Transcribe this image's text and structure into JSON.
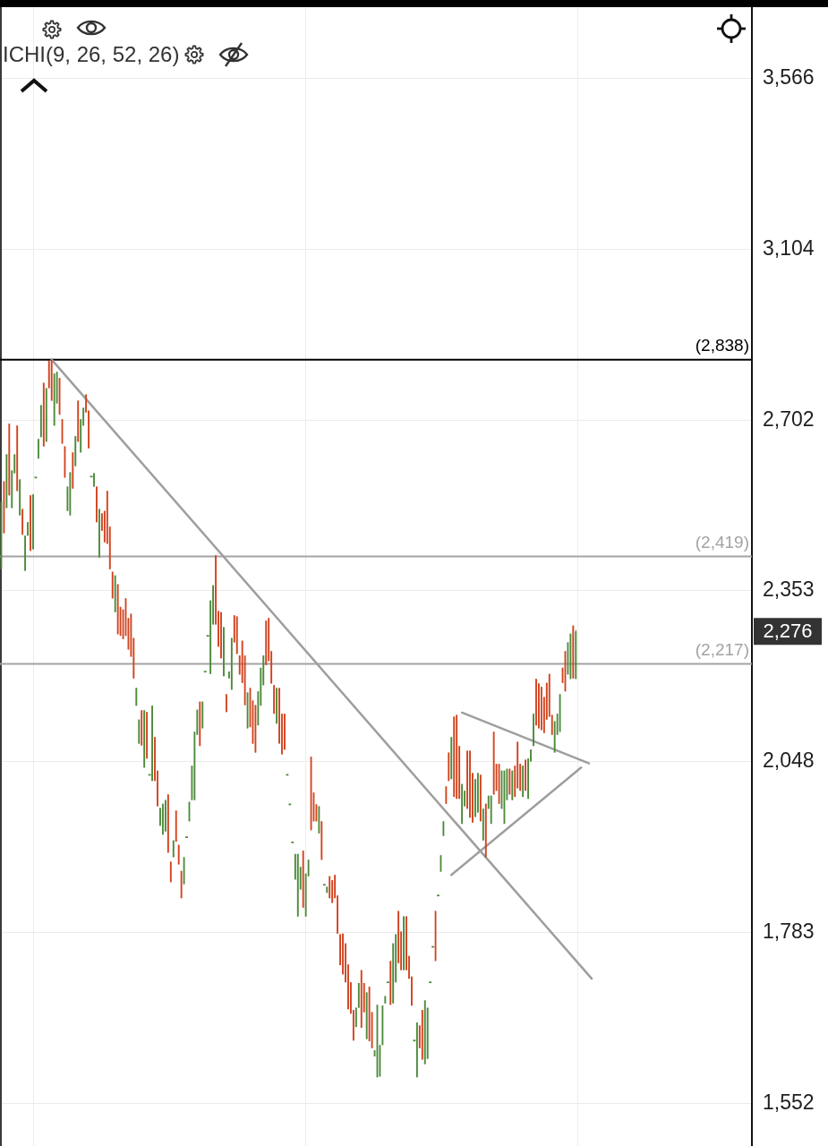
{
  "chart_data": {
    "type": "candlestick",
    "annotations": [
      "ICHI(9, 26, 52, 26)",
      "2,276"
    ],
    "categories": [
      null,
      null,
      null,
      null,
      null,
      null,
      null,
      null,
      null,
      null,
      null,
      null,
      null,
      null,
      null,
      null,
      null,
      null,
      null,
      null,
      null,
      null,
      null,
      null,
      null,
      null,
      null,
      null,
      null,
      null,
      null,
      null,
      null,
      null,
      null,
      null,
      null,
      null,
      null,
      null,
      null,
      null,
      null,
      null,
      null,
      null,
      null,
      null,
      null,
      null,
      null,
      null,
      null,
      null,
      null,
      null,
      null,
      null,
      null,
      null,
      null,
      null,
      null,
      null,
      null,
      null,
      null,
      null,
      null,
      null,
      null,
      null,
      null,
      null,
      null,
      null,
      null,
      null,
      null,
      null,
      null,
      null,
      null,
      null,
      null,
      null,
      null,
      null,
      null,
      null,
      null,
      null,
      null,
      null,
      null,
      null,
      null,
      null,
      null,
      null,
      null,
      null,
      null,
      null,
      null,
      null,
      null,
      null,
      null,
      null,
      null,
      null,
      null,
      null,
      null,
      null,
      null,
      null,
      null,
      null,
      null,
      null,
      null,
      null,
      null,
      null,
      null,
      null,
      null,
      null,
      null,
      null,
      null,
      null,
      null,
      null,
      null,
      null,
      null,
      null,
      null,
      null,
      null,
      null,
      null,
      null,
      null,
      null,
      null,
      null,
      null,
      null,
      null,
      null,
      null,
      null,
      null,
      null,
      null,
      null,
      null,
      null,
      null,
      null,
      null,
      null,
      null,
      null,
      null,
      null,
      null,
      null,
      null,
      null,
      null,
      null,
      null,
      null,
      null,
      null,
      null,
      null,
      null,
      null,
      null,
      null,
      null,
      null,
      null,
      null,
      null,
      null,
      null,
      null,
      null,
      null,
      null,
      null,
      null,
      null,
      null,
      null,
      null,
      null,
      null,
      null,
      null,
      null,
      null,
      null,
      null,
      null,
      null,
      null,
      null,
      null,
      null,
      null,
      null,
      null,
      null,
      null,
      null,
      null,
      null,
      null,
      null,
      null,
      null,
      null,
      null,
      null,
      null,
      null,
      null,
      null,
      null,
      null,
      null,
      null,
      null,
      null,
      null,
      null,
      null,
      null,
      null,
      null,
      null,
      null,
      null,
      null,
      null,
      null,
      null,
      null,
      null,
      null,
      null,
      null,
      null,
      null,
      null,
      null,
      null,
      null,
      null,
      null,
      null,
      null,
      null,
      null,
      null,
      null,
      null,
      null,
      null,
      null,
      null,
      null,
      null,
      null,
      null,
      null
    ],
    "ohlc": [
      [
        2394,
        2529,
        2394,
        2529
      ],
      [
        2571,
        2571,
        2465,
        2465
      ],
      [
        2516,
        2628,
        2516,
        2628
      ],
      [
        2694,
        2694,
        2542,
        2542
      ],
      [
        2516,
        2594,
        2516,
        2594
      ],
      [
        2588,
        2628,
        2588,
        2628
      ],
      [
        2690,
        2690,
        2551,
        2551
      ],
      [
        2501,
        2575,
        2501,
        2575
      ],
      [
        2514,
        2514,
        2462,
        2462
      ],
      [
        2391,
        2460,
        2391,
        2460
      ],
      [
        2460,
        2487,
        2460,
        2487
      ],
      [
        2542,
        2542,
        2430,
        2430
      ],
      [
        2433,
        2544,
        2433,
        2544
      ],
      [
        2579,
        2579,
        2579,
        2579
      ],
      [
        2619,
        2661,
        2619,
        2661
      ],
      [
        2665,
        2735,
        2665,
        2735
      ],
      [
        2785,
        2785,
        2645,
        2645
      ],
      [
        2655,
        2773,
        2655,
        2773
      ],
      [
        2835,
        2835,
        2773,
        2773
      ],
      [
        2838,
        2838,
        2745,
        2745
      ],
      [
        2690,
        2806,
        2690,
        2806
      ],
      [
        2739,
        2810,
        2739,
        2810
      ],
      [
        2796,
        2796,
        2714,
        2714
      ],
      [
        2704,
        2704,
        2651,
        2651
      ],
      [
        2645,
        2645,
        2579,
        2579
      ],
      [
        2510,
        2560,
        2510,
        2560
      ],
      [
        2501,
        2590,
        2501,
        2590
      ],
      [
        2632,
        2632,
        2556,
        2556
      ],
      [
        2603,
        2667,
        2603,
        2667
      ],
      [
        2745,
        2745,
        2655,
        2655
      ],
      [
        2632,
        2704,
        2632,
        2704
      ],
      [
        2690,
        2729,
        2690,
        2729
      ],
      [
        2759,
        2759,
        2719,
        2719
      ],
      [
        2723,
        2723,
        2641,
        2641
      ],
      [
        2581,
        2581,
        2581,
        2581
      ],
      [
        2560,
        2588,
        2560,
        2588
      ],
      [
        2560,
        2560,
        2487,
        2487
      ],
      [
        2417,
        2514,
        2417,
        2514
      ],
      [
        2505,
        2505,
        2470,
        2470
      ],
      [
        2510,
        2510,
        2447,
        2447
      ],
      [
        2551,
        2551,
        2444,
        2444
      ],
      [
        2478,
        2478,
        2394,
        2394
      ],
      [
        2389,
        2389,
        2338,
        2338
      ],
      [
        2312,
        2382,
        2312,
        2382
      ],
      [
        2365,
        2365,
        2271,
        2271
      ],
      [
        2322,
        2322,
        2268,
        2268
      ],
      [
        2317,
        2317,
        2262,
        2262
      ],
      [
        2338,
        2338,
        2268,
        2268
      ],
      [
        2301,
        2301,
        2243,
        2243
      ],
      [
        2309,
        2309,
        2230,
        2230
      ],
      [
        2264,
        2264,
        2191,
        2191
      ],
      [
        2143,
        2174,
        2143,
        2174
      ],
      [
        2078,
        2119,
        2078,
        2119
      ],
      [
        2135,
        2135,
        2075,
        2075
      ],
      [
        2038,
        2135,
        2038,
        2135
      ],
      [
        2132,
        2132,
        2053,
        2053
      ],
      [
        2026,
        2026,
        2026,
        2026
      ],
      [
        2016,
        2143,
        2016,
        2143
      ],
      [
        2089,
        2089,
        2016,
        2016
      ],
      [
        2033,
        2033,
        1975,
        1975
      ],
      [
        1944,
        1972,
        1944,
        1972
      ],
      [
        1930,
        1979,
        1930,
        1979
      ],
      [
        1935,
        1985,
        1935,
        1985
      ],
      [
        1994,
        1994,
        1902,
        1902
      ],
      [
        1888,
        1888,
        1857,
        1857
      ],
      [
        1895,
        1921,
        1895,
        1921
      ],
      [
        1968,
        1968,
        1919,
        1919
      ],
      [
        1914,
        1914,
        1884,
        1884
      ],
      [
        1874,
        1874,
        1833,
        1833
      ],
      [
        1854,
        1895,
        1854,
        1895
      ],
      [
        1926,
        1926,
        1926,
        1926
      ],
      [
        1951,
        1982,
        1951,
        1982
      ],
      [
        1985,
        2041,
        1985,
        2041
      ],
      [
        1985,
        2098,
        1985,
        2098
      ],
      [
        2093,
        2136,
        2093,
        2136
      ],
      [
        2150,
        2150,
        2074,
        2074
      ],
      [
        2104,
        2150,
        2104,
        2150
      ],
      [
        2203,
        2203,
        2203,
        2203
      ],
      [
        2268,
        2268,
        2268,
        2268
      ],
      [
        2199,
        2334,
        2199,
        2334
      ],
      [
        2289,
        2363,
        2289,
        2363
      ],
      [
        2421,
        2421,
        2289,
        2289
      ],
      [
        2314,
        2314,
        2248,
        2248
      ],
      [
        2312,
        2312,
        2227,
        2227
      ],
      [
        2195,
        2284,
        2195,
        2284
      ],
      [
        2163,
        2163,
        2132,
        2132
      ],
      [
        2191,
        2203,
        2191,
        2203
      ],
      [
        2171,
        2264,
        2171,
        2264
      ],
      [
        2306,
        2306,
        2256,
        2256
      ],
      [
        2304,
        2304,
        2235,
        2235
      ],
      [
        2232,
        2232,
        2198,
        2198
      ],
      [
        2259,
        2259,
        2183,
        2183
      ],
      [
        2232,
        2232,
        2144,
        2144
      ],
      [
        2104,
        2166,
        2104,
        2166
      ],
      [
        2174,
        2174,
        2106,
        2106
      ],
      [
        2152,
        2152,
        2078,
        2078
      ],
      [
        2144,
        2144,
        2063,
        2063
      ],
      [
        2109,
        2168,
        2109,
        2168
      ],
      [
        2143,
        2210,
        2143,
        2210
      ],
      [
        2179,
        2232,
        2179,
        2232
      ],
      [
        2296,
        2296,
        2215,
        2215
      ],
      [
        2301,
        2301,
        2222,
        2222
      ],
      [
        2240,
        2240,
        2182,
        2182
      ],
      [
        2179,
        2179,
        2129,
        2129
      ],
      [
        2112,
        2174,
        2112,
        2174
      ],
      [
        2174,
        2174,
        2078,
        2078
      ],
      [
        2129,
        2129,
        2060,
        2060
      ],
      [
        2129,
        2129,
        2068,
        2068
      ],
      [
        2026,
        2026,
        2026,
        2026
      ],
      [
        1978,
        1978,
        1978,
        1978
      ],
      [
        1918,
        1918,
        1918,
        1918
      ],
      [
        1861,
        1900,
        1861,
        1900
      ],
      [
        1806,
        1900,
        1806,
        1900
      ],
      [
        1846,
        1880,
        1846,
        1880
      ],
      [
        1905,
        1905,
        1819,
        1819
      ],
      [
        1806,
        1870,
        1806,
        1870
      ],
      [
        1866,
        1891,
        1866,
        1891
      ],
      [
        2056,
        2056,
        1937,
        1937
      ],
      [
        1997,
        1997,
        1951,
        1951
      ],
      [
        1978,
        1978,
        1951,
        1951
      ],
      [
        1932,
        1975,
        1932,
        1975
      ],
      [
        1951,
        1951,
        1891,
        1891
      ],
      [
        1853,
        1853,
        1853,
        1853
      ],
      [
        1841,
        1850,
        1841,
        1850
      ],
      [
        1866,
        1866,
        1833,
        1833
      ],
      [
        1860,
        1860,
        1826,
        1826
      ],
      [
        1868,
        1868,
        1833,
        1833
      ],
      [
        1837,
        1837,
        1781,
        1781
      ],
      [
        1780,
        1780,
        1736,
        1736
      ],
      [
        1781,
        1781,
        1723,
        1723
      ],
      [
        1767,
        1767,
        1712,
        1712
      ],
      [
        1737,
        1737,
        1675,
        1675
      ],
      [
        1712,
        1712,
        1669,
        1669
      ],
      [
        1674,
        1674,
        1633,
        1633
      ],
      [
        1651,
        1677,
        1651,
        1677
      ],
      [
        1677,
        1711,
        1677,
        1711
      ],
      [
        1729,
        1729,
        1650,
        1650
      ],
      [
        1711,
        1711,
        1671,
        1671
      ],
      [
        1635,
        1698,
        1635,
        1698
      ],
      [
        1706,
        1706,
        1632,
        1632
      ],
      [
        1671,
        1671,
        1623,
        1623
      ],
      [
        1612,
        1620,
        1612,
        1620
      ],
      [
        1585,
        1681,
        1585,
        1681
      ],
      [
        1586,
        1627,
        1586,
        1627
      ],
      [
        1627,
        1680,
        1627,
        1680
      ],
      [
        1683,
        1693,
        1683,
        1693
      ],
      [
        1712,
        1712,
        1712,
        1712
      ],
      [
        1742,
        1742,
        1681,
        1681
      ],
      [
        1683,
        1767,
        1683,
        1767
      ],
      [
        1712,
        1780,
        1712,
        1780
      ],
      [
        1814,
        1814,
        1739,
        1739
      ],
      [
        1784,
        1784,
        1729,
        1729
      ],
      [
        1729,
        1806,
        1729,
        1806
      ],
      [
        1806,
        1806,
        1729,
        1729
      ],
      [
        1749,
        1749,
        1717,
        1717
      ],
      [
        1720,
        1720,
        1680,
        1680
      ],
      [
        1633,
        1633,
        1633,
        1633
      ],
      [
        1585,
        1657,
        1585,
        1657
      ],
      [
        1653,
        1653,
        1623,
        1623
      ],
      [
        1674,
        1674,
        1608,
        1608
      ],
      [
        1602,
        1687,
        1602,
        1687
      ],
      [
        1609,
        1677,
        1609,
        1677
      ],
      [
        1712,
        1712,
        1712,
        1712
      ],
      [
        1762,
        1762,
        1762,
        1762
      ],
      [
        1814,
        1814,
        1742,
        1742
      ],
      [
        1837,
        1837,
        1837,
        1837
      ],
      [
        1873,
        1898,
        1873,
        1898
      ],
      [
        1928,
        1951,
        1928,
        1951
      ],
      [
        2007,
        2007,
        1979,
        1979
      ],
      [
        2063,
        2063,
        2016,
        2016
      ],
      [
        2019,
        2089,
        2019,
        2089
      ],
      [
        2124,
        2124,
        1990,
        1990
      ],
      [
        2127,
        2127,
        1987,
        1987
      ],
      [
        2074,
        2074,
        1987,
        1987
      ],
      [
        1947,
        2011,
        1947,
        2011
      ],
      [
        1975,
        2000,
        1975,
        2000
      ],
      [
        2066,
        2066,
        1971,
        1971
      ],
      [
        2066,
        2066,
        1957,
        1957
      ],
      [
        2029,
        2029,
        1949,
        1949
      ],
      [
        1958,
        2019,
        1958,
        2019
      ],
      [
        1965,
        2029,
        1965,
        2029
      ],
      [
        2026,
        2026,
        1951,
        1951
      ],
      [
        1921,
        1971,
        1921,
        1971
      ],
      [
        1979,
        1979,
        1895,
        1895
      ],
      [
        1971,
        1992,
        1971,
        1992
      ],
      [
        1947,
        1992,
        1947,
        1992
      ],
      [
        2098,
        2098,
        1994,
        1994
      ],
      [
        2044,
        2044,
        2000,
        2000
      ],
      [
        2044,
        2044,
        1979,
        1979
      ],
      [
        1971,
        2033,
        1971,
        2033
      ],
      [
        1947,
        2033,
        1947,
        2033
      ],
      [
        1985,
        2036,
        1985,
        2036
      ],
      [
        2036,
        2036,
        1994,
        1994
      ],
      [
        1985,
        2033,
        1985,
        2033
      ],
      [
        2041,
        2041,
        1990,
        1990
      ],
      [
        2081,
        2081,
        2004,
        2004
      ],
      [
        2044,
        2044,
        2000,
        2000
      ],
      [
        1990,
        2041,
        1990,
        2041
      ],
      [
        2051,
        2051,
        2000,
        2000
      ],
      [
        1987,
        2053,
        1987,
        2053
      ],
      [
        2048,
        2068,
        2048,
        2068
      ],
      [
        2074,
        2129,
        2074,
        2129
      ],
      [
        2190,
        2190,
        2109,
        2109
      ],
      [
        2182,
        2182,
        2104,
        2104
      ],
      [
        2176,
        2176,
        2101,
        2101
      ],
      [
        2158,
        2158,
        2096,
        2096
      ],
      [
        2183,
        2183,
        2119,
        2119
      ],
      [
        2199,
        2199,
        2124,
        2124
      ],
      [
        2127,
        2127,
        2093,
        2093
      ],
      [
        2063,
        2116,
        2063,
        2116
      ],
      [
        2093,
        2129,
        2093,
        2129
      ],
      [
        2098,
        2163,
        2098,
        2163
      ],
      [
        2210,
        2210,
        2183,
        2183
      ],
      [
        2240,
        2240,
        2168,
        2168
      ],
      [
        2198,
        2256,
        2198,
        2256
      ],
      [
        2190,
        2272,
        2190,
        2272
      ],
      [
        2287,
        2287,
        2191,
        2191
      ],
      [
        2190,
        2279,
        2190,
        2276
      ],
      null,
      null,
      null,
      null,
      null,
      null,
      null,
      null,
      null,
      null,
      null,
      null,
      null,
      null,
      null,
      null,
      null,
      null,
      null,
      null,
      null,
      null,
      null,
      null,
      null,
      null,
      null,
      null,
      null,
      null,
      null,
      null,
      null,
      null,
      null,
      null,
      null,
      null,
      null,
      null,
      null,
      null,
      null,
      null,
      null,
      null,
      null,
      null,
      null,
      null,
      null,
      null,
      null,
      null,
      null,
      null,
      null,
      null,
      null,
      null,
      null,
      null,
      null,
      null,
      null,
      null
    ],
    "colors": [
      "#4d8a3b",
      "#d2431f",
      "#4d8a3b",
      "#d2431f",
      "#4d8a3b",
      "#4d8a3b",
      "#d2431f",
      "#4d8a3b",
      "#d2431f",
      "#4d8a3b",
      "#4d8a3b",
      "#d2431f",
      "#4d8a3b",
      "#4d8a3b",
      "#4d8a3b",
      "#4d8a3b",
      "#d2431f",
      "#4d8a3b",
      "#d2431f",
      "#d2431f",
      "#4d8a3b",
      "#4d8a3b",
      "#d2431f",
      "#d2431f",
      "#d2431f",
      "#4d8a3b",
      "#4d8a3b",
      "#d2431f",
      "#4d8a3b",
      "#d2431f",
      "#4d8a3b",
      "#4d8a3b",
      "#d2431f",
      "#d2431f",
      "#4d8a3b",
      "#4d8a3b",
      "#d2431f",
      "#4d8a3b",
      "#d2431f",
      "#d2431f",
      "#d2431f",
      "#d2431f",
      "#d2431f",
      "#4d8a3b",
      "#d2431f",
      "#d2431f",
      "#d2431f",
      "#d2431f",
      "#d2431f",
      "#d2431f",
      "#d2431f",
      "#4d8a3b",
      "#4d8a3b",
      "#d2431f",
      "#4d8a3b",
      "#d2431f",
      "#4d8a3b",
      "#4d8a3b",
      "#d2431f",
      "#d2431f",
      "#4d8a3b",
      "#4d8a3b",
      "#4d8a3b",
      "#d2431f",
      "#d2431f",
      "#4d8a3b",
      "#d2431f",
      "#d2431f",
      "#d2431f",
      "#4d8a3b",
      "#4d8a3b",
      "#4d8a3b",
      "#4d8a3b",
      "#4d8a3b",
      "#4d8a3b",
      "#d2431f",
      "#4d8a3b",
      "#4d8a3b",
      "#4d8a3b",
      "#4d8a3b",
      "#4d8a3b",
      "#d2431f",
      "#d2431f",
      "#d2431f",
      "#4d8a3b",
      "#d2431f",
      "#4d8a3b",
      "#4d8a3b",
      "#d2431f",
      "#d2431f",
      "#d2431f",
      "#d2431f",
      "#d2431f",
      "#4d8a3b",
      "#d2431f",
      "#d2431f",
      "#d2431f",
      "#4d8a3b",
      "#4d8a3b",
      "#4d8a3b",
      "#d2431f",
      "#d2431f",
      "#d2431f",
      "#d2431f",
      "#4d8a3b",
      "#d2431f",
      "#d2431f",
      "#d2431f",
      "#4d8a3b",
      "#4d8a3b",
      "#4d8a3b",
      "#4d8a3b",
      "#4d8a3b",
      "#4d8a3b",
      "#d2431f",
      "#4d8a3b",
      "#4d8a3b",
      "#d2431f",
      "#d2431f",
      "#d2431f",
      "#4d8a3b",
      "#d2431f",
      "#4d8a3b",
      "#4d8a3b",
      "#d2431f",
      "#d2431f",
      "#d2431f",
      "#d2431f",
      "#d2431f",
      "#d2431f",
      "#d2431f",
      "#d2431f",
      "#d2431f",
      "#d2431f",
      "#4d8a3b",
      "#4d8a3b",
      "#d2431f",
      "#d2431f",
      "#4d8a3b",
      "#d2431f",
      "#d2431f",
      "#4d8a3b",
      "#4d8a3b",
      "#4d8a3b",
      "#4d8a3b",
      "#4d8a3b",
      "#4d8a3b",
      "#d2431f",
      "#4d8a3b",
      "#4d8a3b",
      "#d2431f",
      "#d2431f",
      "#4d8a3b",
      "#d2431f",
      "#d2431f",
      "#d2431f",
      "#4d8a3b",
      "#4d8a3b",
      "#d2431f",
      "#d2431f",
      "#4d8a3b",
      "#4d8a3b",
      "#4d8a3b",
      "#4d8a3b",
      "#d2431f",
      "#4d8a3b",
      "#4d8a3b",
      "#4d8a3b",
      "#d2431f",
      "#d2431f",
      "#4d8a3b",
      "#d2431f",
      "#d2431f",
      "#d2431f",
      "#4d8a3b",
      "#4d8a3b",
      "#d2431f",
      "#d2431f",
      "#d2431f",
      "#4d8a3b",
      "#4d8a3b",
      "#d2431f",
      "#4d8a3b",
      "#d2431f",
      "#4d8a3b",
      "#4d8a3b",
      "#d2431f",
      "#d2431f",
      "#d2431f",
      "#4d8a3b",
      "#4d8a3b",
      "#4d8a3b",
      "#d2431f",
      "#4d8a3b",
      "#d2431f",
      "#d2431f",
      "#d2431f",
      "#4d8a3b",
      "#d2431f",
      "#4d8a3b",
      "#4d8a3b",
      "#4d8a3b",
      "#d2431f",
      "#d2431f",
      "#d2431f",
      "#d2431f",
      "#d2431f",
      "#d2431f",
      "#d2431f",
      "#4d8a3b",
      "#4d8a3b",
      "#4d8a3b",
      "#d2431f",
      "#d2431f",
      "#4d8a3b",
      "#4d8a3b",
      "#d2431f",
      "#4d8a3b",
      null,
      null,
      null,
      null,
      null,
      null,
      null,
      null,
      null,
      null,
      null,
      null,
      null,
      null,
      null,
      null,
      null,
      null,
      null,
      null,
      null,
      null,
      null,
      null,
      null,
      null,
      null,
      null,
      null,
      null,
      null,
      null,
      null,
      null,
      null,
      null,
      null,
      null,
      null,
      null,
      null,
      null,
      null,
      null,
      null,
      null,
      null,
      null,
      null,
      null,
      null,
      null,
      null,
      null,
      null,
      null,
      null,
      null,
      null,
      null,
      null,
      null,
      null,
      null,
      null,
      null
    ],
    "series": [
      {
        "type": "line",
        "color": "#9e9e9e",
        "values": [
          null,
          null,
          null,
          null,
          null,
          null,
          null,
          null,
          null,
          null,
          null,
          null,
          null,
          null,
          null,
          null,
          null,
          null,
          null,
          2838,
          null,
          null,
          null,
          null,
          null,
          null,
          null,
          null,
          null,
          null,
          null,
          null,
          null,
          null,
          null,
          null,
          null,
          null,
          null,
          null,
          null,
          null,
          null,
          null,
          null,
          null,
          null,
          null,
          null,
          null,
          null,
          null,
          null,
          null,
          null,
          null,
          null,
          null,
          null,
          null,
          null,
          null,
          null,
          null,
          null,
          null,
          null,
          null,
          null,
          null,
          null,
          null,
          null,
          null,
          null,
          null,
          null,
          null,
          null,
          null,
          null,
          null,
          null,
          null,
          null,
          null,
          null,
          null,
          null,
          null,
          null,
          null,
          null,
          null,
          null,
          null,
          null,
          null,
          null,
          null,
          null,
          null,
          null,
          null,
          null,
          null,
          null,
          null,
          null,
          null,
          null,
          null,
          null,
          null,
          null,
          null,
          null,
          null,
          null,
          null,
          null,
          null,
          null,
          null,
          null,
          null,
          null,
          null,
          null,
          null,
          null,
          null,
          null,
          null,
          null,
          null,
          null,
          null,
          null,
          null,
          null,
          null,
          null,
          null,
          null,
          null,
          null,
          null,
          null,
          null,
          null,
          null,
          null,
          null,
          null,
          null,
          null,
          null,
          null,
          null,
          null,
          null,
          null,
          null,
          null,
          null,
          null,
          null,
          null,
          null,
          null,
          null,
          null,
          null,
          null,
          null,
          null,
          null,
          null,
          null,
          null,
          null,
          null,
          null,
          null,
          null,
          null,
          null,
          null,
          null,
          null,
          null,
          null,
          null,
          null,
          null,
          null,
          null,
          null,
          null,
          null,
          null,
          null,
          null,
          null,
          null,
          null,
          null,
          null,
          null,
          null,
          null,
          null,
          null,
          null,
          null,
          null,
          null,
          null,
          null,
          null,
          null,
          null,
          1717,
          null,
          null,
          null,
          null,
          null,
          null,
          null,
          null,
          null,
          null,
          null,
          null,
          null,
          null,
          null,
          null,
          null,
          null,
          null,
          null,
          null,
          null,
          null,
          null,
          null,
          null,
          null,
          null,
          null,
          null,
          null,
          null,
          null,
          null,
          null,
          null,
          null,
          null,
          null,
          null,
          null,
          null,
          null,
          null,
          null,
          null,
          null,
          null,
          null,
          null,
          null,
          null,
          null,
          null,
          null,
          null,
          null,
          null,
          null,
          null
        ]
      },
      {
        "type": "line",
        "color": "#9e9e9e",
        "values": [
          null,
          null,
          null,
          null,
          null,
          null,
          null,
          null,
          null,
          null,
          null,
          null,
          null,
          null,
          null,
          null,
          null,
          null,
          null,
          null,
          null,
          null,
          null,
          null,
          null,
          null,
          null,
          null,
          null,
          null,
          null,
          null,
          null,
          null,
          null,
          null,
          null,
          null,
          null,
          null,
          null,
          null,
          null,
          null,
          null,
          null,
          null,
          null,
          null,
          null,
          null,
          null,
          null,
          null,
          null,
          null,
          null,
          null,
          null,
          null,
          null,
          null,
          null,
          null,
          null,
          null,
          null,
          null,
          null,
          null,
          null,
          null,
          null,
          null,
          null,
          null,
          null,
          null,
          null,
          null,
          null,
          null,
          null,
          null,
          null,
          null,
          null,
          null,
          null,
          null,
          null,
          null,
          null,
          null,
          null,
          null,
          null,
          null,
          null,
          null,
          null,
          null,
          null,
          null,
          null,
          null,
          null,
          null,
          null,
          null,
          null,
          null,
          null,
          null,
          null,
          null,
          null,
          null,
          null,
          null,
          null,
          null,
          null,
          null,
          null,
          null,
          null,
          null,
          null,
          null,
          null,
          null,
          null,
          null,
          null,
          null,
          null,
          null,
          null,
          null,
          null,
          null,
          null,
          null,
          null,
          null,
          null,
          null,
          null,
          null,
          null,
          null,
          null,
          null,
          null,
          null,
          null,
          null,
          null,
          null,
          null,
          null,
          null,
          null,
          null,
          null,
          null,
          null,
          null,
          null,
          null,
          null,
          null,
          null,
          2131,
          null,
          null,
          null,
          null,
          null,
          null,
          null,
          null,
          null,
          null,
          null,
          null,
          null,
          null,
          null,
          null,
          null,
          null,
          null,
          null,
          null,
          null,
          null,
          null,
          null,
          null,
          null,
          null,
          null,
          null,
          null,
          null,
          null,
          null,
          null,
          null,
          null,
          null,
          null,
          null,
          null,
          null,
          null,
          null,
          null,
          null,
          null,
          2045,
          null,
          null,
          null,
          null,
          null,
          null,
          null,
          null,
          null,
          null,
          null,
          null,
          null,
          null,
          null,
          null,
          null,
          null,
          null,
          null,
          null,
          null,
          null,
          null,
          null,
          null,
          null,
          null,
          null,
          null,
          null,
          null,
          null,
          null,
          null,
          null,
          null,
          null,
          null,
          null,
          null,
          null,
          null,
          null,
          null,
          null,
          null,
          null,
          null,
          null,
          null,
          null,
          null,
          null,
          null,
          null,
          null,
          null,
          null,
          null,
          null
        ]
      },
      {
        "type": "line",
        "color": "#9e9e9e",
        "values": [
          null,
          null,
          null,
          null,
          null,
          null,
          null,
          null,
          null,
          null,
          null,
          null,
          null,
          null,
          null,
          null,
          null,
          null,
          null,
          null,
          null,
          null,
          null,
          null,
          null,
          null,
          null,
          null,
          null,
          null,
          null,
          null,
          null,
          null,
          null,
          null,
          null,
          null,
          null,
          null,
          null,
          null,
          null,
          null,
          null,
          null,
          null,
          null,
          null,
          null,
          null,
          null,
          null,
          null,
          null,
          null,
          null,
          null,
          null,
          null,
          null,
          null,
          null,
          null,
          null,
          null,
          null,
          null,
          null,
          null,
          null,
          null,
          null,
          null,
          null,
          null,
          null,
          null,
          null,
          null,
          null,
          null,
          null,
          null,
          null,
          null,
          null,
          null,
          null,
          null,
          null,
          null,
          null,
          null,
          null,
          null,
          null,
          null,
          null,
          null,
          null,
          null,
          null,
          null,
          null,
          null,
          null,
          null,
          null,
          null,
          null,
          null,
          null,
          null,
          null,
          null,
          null,
          null,
          null,
          null,
          null,
          null,
          null,
          null,
          null,
          null,
          null,
          null,
          null,
          null,
          null,
          null,
          null,
          null,
          null,
          null,
          null,
          null,
          null,
          null,
          null,
          null,
          null,
          null,
          null,
          null,
          null,
          null,
          null,
          null,
          null,
          null,
          null,
          null,
          null,
          null,
          null,
          null,
          null,
          null,
          null,
          null,
          null,
          null,
          null,
          null,
          null,
          null,
          null,
          null,
          1868,
          null,
          null,
          null,
          null,
          null,
          null,
          null,
          null,
          null,
          null,
          null,
          null,
          null,
          null,
          null,
          null,
          null,
          null,
          null,
          null,
          null,
          null,
          null,
          null,
          null,
          null,
          null,
          null,
          null,
          null,
          null,
          null,
          null,
          null,
          null,
          null,
          null,
          null,
          null,
          null,
          null,
          null,
          null,
          null,
          null,
          null,
          null,
          null,
          2038,
          null,
          null,
          null,
          null,
          null,
          null,
          null,
          null,
          null,
          null,
          null,
          null,
          null,
          null,
          null,
          null,
          null,
          null,
          null,
          null,
          null,
          null,
          null,
          null,
          null,
          null,
          null,
          null,
          null,
          null,
          null,
          null,
          null,
          null,
          null,
          null,
          null,
          null,
          null,
          null,
          null,
          null,
          null,
          null,
          null,
          null,
          null,
          null,
          null,
          null,
          null,
          null,
          null,
          null,
          null,
          null,
          null,
          null,
          null,
          null,
          null,
          null,
          null,
          null
        ]
      }
    ],
    "ylim": [
      1499,
      3778
    ],
    "yticks": [
      {
        "value": 1552,
        "label": "1,552"
      },
      {
        "value": 1783,
        "label": "1,783"
      },
      {
        "value": 2048,
        "label": "2,048"
      },
      {
        "value": 2353,
        "label": "2,353"
      },
      {
        "value": 2702,
        "label": "2,702"
      },
      {
        "value": 3104,
        "label": "3,104"
      },
      {
        "value": 3566,
        "label": "3,566"
      }
    ],
    "log": true,
    "grid": "y",
    "tick_labels": "y",
    "marker": "none",
    "ref_lines": [
      {
        "axis": "y",
        "value": 2838,
        "label": "(2,838)",
        "color": "#000000"
      },
      {
        "axis": "y",
        "value": 2419,
        "label": "(2,419)",
        "color": "#a3a3a3"
      },
      {
        "axis": "y",
        "value": 2217,
        "label": "(2,217)",
        "color": "#a3a3a3"
      }
    ]
  }
}
